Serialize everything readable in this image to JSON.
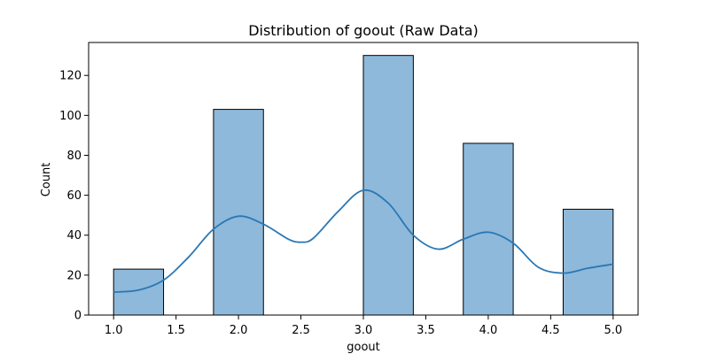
{
  "chart_data": {
    "type": "bar",
    "title": "Distribution of goout (Raw Data)",
    "xlabel": "goout",
    "ylabel": "Count",
    "xlim": [
      0.8,
      5.2
    ],
    "ylim": [
      0,
      136.5
    ],
    "x_ticks": [
      1.0,
      1.5,
      2.0,
      2.5,
      3.0,
      3.5,
      4.0,
      4.5,
      5.0
    ],
    "x_tick_labels": [
      "1.0",
      "1.5",
      "2.0",
      "2.5",
      "3.0",
      "3.5",
      "4.0",
      "4.5",
      "5.0"
    ],
    "y_ticks": [
      0,
      20,
      40,
      60,
      80,
      100,
      120
    ],
    "y_tick_labels": [
      "0",
      "20",
      "40",
      "60",
      "80",
      "100",
      "120"
    ],
    "bin_width": 0.4,
    "bins": [
      {
        "start": 1.0,
        "end": 1.4,
        "count": 23
      },
      {
        "start": 1.4,
        "end": 1.8,
        "count": 0
      },
      {
        "start": 1.8,
        "end": 2.2,
        "count": 103
      },
      {
        "start": 2.2,
        "end": 2.6,
        "count": 0
      },
      {
        "start": 2.6,
        "end": 3.0,
        "count": 0
      },
      {
        "start": 3.0,
        "end": 3.4,
        "count": 130
      },
      {
        "start": 3.4,
        "end": 3.8,
        "count": 0
      },
      {
        "start": 3.8,
        "end": 4.2,
        "count": 86
      },
      {
        "start": 4.2,
        "end": 4.6,
        "count": 0
      },
      {
        "start": 4.6,
        "end": 5.0,
        "count": 53
      }
    ],
    "kde": {
      "x": [
        1.0,
        1.2,
        1.4,
        1.6,
        1.8,
        2.0,
        2.2,
        2.4,
        2.5,
        2.6,
        2.8,
        3.0,
        3.2,
        3.4,
        3.6,
        3.8,
        4.0,
        4.2,
        4.4,
        4.6,
        4.8,
        5.0
      ],
      "y": [
        11.5,
        12.5,
        17.5,
        29,
        43,
        49.5,
        45.5,
        38,
        36.5,
        38.5,
        52,
        62.5,
        56,
        40,
        33,
        38,
        41.5,
        36,
        24,
        21,
        23.5,
        25.5
      ]
    },
    "grid": false,
    "colors": {
      "bar_fill": "#8eb9da",
      "bar_edge": "#000000",
      "kde_line": "#2a77b4"
    }
  }
}
